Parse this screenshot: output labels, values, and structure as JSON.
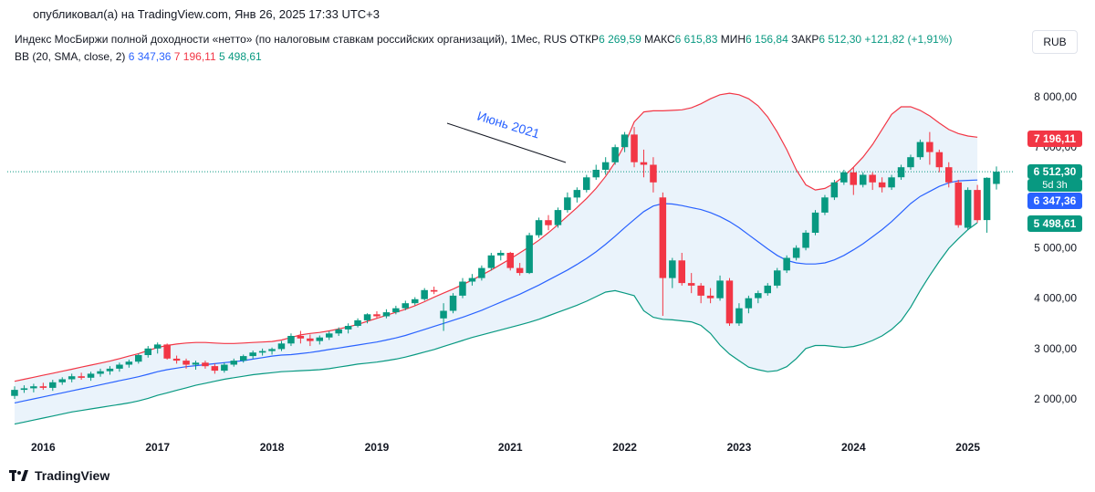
{
  "header": {
    "published": "опубликовал(а) на TradingView.com, Янв 26, 2025 17:33 UTC+3"
  },
  "legend": {
    "title": "Индекс МосБиржи полной доходности «нетто» (по налоговым ставкам российских организаций), 1Мес, RUS",
    "open_label": "ОТКР",
    "open": "6 269,59",
    "high_label": "МАКС",
    "high": "6 615,83",
    "low_label": "МИН",
    "low": "6 156,84",
    "close_label": "ЗАКР",
    "close": "6 512,30",
    "change": "+121,82 (+1,91%)",
    "bb_label": "BB (20, SMA, close, 2)",
    "bb_basis": "6 347,36",
    "bb_upper": "7 196,11",
    "bb_lower": "5 498,61"
  },
  "currency_button": "RUB",
  "footer": {
    "brand": "TradingView"
  },
  "price_tags": {
    "upper": "7 196,11",
    "last": "6 512,30",
    "countdown": "5d 3h",
    "basis": "6 347,36",
    "lower": "5 498,61"
  },
  "colors": {
    "up": "#089981",
    "down": "#f23645",
    "basis": "#2962ff",
    "upper": "#f23645",
    "lower": "#089981",
    "band_fill": "#eaf3fb"
  },
  "chart_data": {
    "type": "candlestick",
    "title": "Индекс МосБиржи полной доходности «нетто» (по налоговым ставкам российских организаций), 1Мес, RUS",
    "ylim": [
      1500,
      8600
    ],
    "y_ticks": [
      2000,
      3000,
      4000,
      5000,
      6000,
      7000,
      8000
    ],
    "y_tick_labels": [
      "2 000,00",
      "3 000,00",
      "4 000,00",
      "5 000,00",
      "6 000,00",
      "7 000,00",
      "8 000,00"
    ],
    "x_ticks": [
      {
        "label": "2016",
        "index": 3
      },
      {
        "label": "2017",
        "index": 15
      },
      {
        "label": "2018",
        "index": 27
      },
      {
        "label": "2019",
        "index": 38
      },
      {
        "label": "2021",
        "index": 52
      },
      {
        "label": "2022",
        "index": 64
      },
      {
        "label": "2023",
        "index": 76
      },
      {
        "label": "2024",
        "index": 88
      },
      {
        "label": "2025",
        "index": 100
      }
    ],
    "annotation": {
      "text": "Июнь 2021",
      "index": 57,
      "value": 6600
    },
    "grid": false,
    "candles": [
      [
        2060,
        2250,
        2000,
        2180
      ],
      [
        2180,
        2270,
        2120,
        2210
      ],
      [
        2210,
        2300,
        2130,
        2250
      ],
      [
        2250,
        2320,
        2180,
        2220
      ],
      [
        2220,
        2380,
        2160,
        2330
      ],
      [
        2330,
        2430,
        2280,
        2390
      ],
      [
        2390,
        2500,
        2330,
        2450
      ],
      [
        2450,
        2520,
        2380,
        2420
      ],
      [
        2420,
        2540,
        2360,
        2500
      ],
      [
        2500,
        2600,
        2440,
        2550
      ],
      [
        2550,
        2650,
        2480,
        2600
      ],
      [
        2600,
        2720,
        2540,
        2680
      ],
      [
        2680,
        2780,
        2620,
        2740
      ],
      [
        2740,
        2900,
        2700,
        2870
      ],
      [
        2870,
        3050,
        2820,
        3000
      ],
      [
        3000,
        3120,
        2900,
        3080
      ],
      [
        3080,
        3100,
        2780,
        2800
      ],
      [
        2800,
        2860,
        2700,
        2760
      ],
      [
        2760,
        2800,
        2600,
        2680
      ],
      [
        2680,
        2760,
        2580,
        2720
      ],
      [
        2720,
        2760,
        2600,
        2650
      ],
      [
        2650,
        2700,
        2500,
        2560
      ],
      [
        2560,
        2720,
        2520,
        2680
      ],
      [
        2680,
        2800,
        2640,
        2760
      ],
      [
        2760,
        2880,
        2720,
        2850
      ],
      [
        2850,
        2960,
        2800,
        2920
      ],
      [
        2920,
        3000,
        2860,
        2950
      ],
      [
        2950,
        3020,
        2880,
        2990
      ],
      [
        2990,
        3150,
        2950,
        3100
      ],
      [
        3100,
        3300,
        3050,
        3250
      ],
      [
        3250,
        3350,
        3100,
        3200
      ],
      [
        3200,
        3280,
        3050,
        3150
      ],
      [
        3150,
        3260,
        3080,
        3220
      ],
      [
        3220,
        3340,
        3170,
        3300
      ],
      [
        3300,
        3420,
        3250,
        3380
      ],
      [
        3380,
        3500,
        3300,
        3450
      ],
      [
        3450,
        3600,
        3420,
        3560
      ],
      [
        3560,
        3700,
        3500,
        3680
      ],
      [
        3680,
        3740,
        3600,
        3640
      ],
      [
        3640,
        3780,
        3600,
        3720
      ],
      [
        3720,
        3850,
        3680,
        3800
      ],
      [
        3800,
        3950,
        3760,
        3900
      ],
      [
        3900,
        4020,
        3860,
        3980
      ],
      [
        3980,
        4200,
        3950,
        4160
      ],
      [
        4160,
        4230,
        4080,
        4130
      ],
      [
        3600,
        3900,
        3350,
        3750
      ],
      [
        3750,
        4100,
        3700,
        4050
      ],
      [
        4050,
        4400,
        4000,
        4330
      ],
      [
        4330,
        4480,
        4250,
        4400
      ],
      [
        4400,
        4650,
        4350,
        4600
      ],
      [
        4600,
        4900,
        4550,
        4850
      ],
      [
        4850,
        4950,
        4750,
        4900
      ],
      [
        4900,
        4920,
        4550,
        4600
      ],
      [
        4600,
        4700,
        4450,
        4500
      ],
      [
        4500,
        5300,
        4480,
        5250
      ],
      [
        5250,
        5600,
        5200,
        5550
      ],
      [
        5550,
        5650,
        5350,
        5450
      ],
      [
        5450,
        5800,
        5400,
        5750
      ],
      [
        5750,
        6100,
        5700,
        6000
      ],
      [
        6000,
        6200,
        5900,
        6150
      ],
      [
        6150,
        6450,
        6100,
        6400
      ],
      [
        6400,
        6650,
        6350,
        6550
      ],
      [
        6550,
        6800,
        6450,
        6700
      ],
      [
        6700,
        7050,
        6650,
        7000
      ],
      [
        7000,
        7300,
        6900,
        7250
      ],
      [
        7250,
        7400,
        6600,
        6700
      ],
      [
        6700,
        6950,
        6400,
        6650
      ],
      [
        6650,
        6800,
        6100,
        6300
      ],
      [
        6000,
        6100,
        3650,
        4400
      ],
      [
        4400,
        4800,
        4200,
        4750
      ],
      [
        4750,
        4900,
        4250,
        4300
      ],
      [
        4300,
        4500,
        4100,
        4250
      ],
      [
        4250,
        4300,
        3900,
        4050
      ],
      [
        4050,
        4200,
        3900,
        4000
      ],
      [
        4000,
        4450,
        3950,
        4350
      ],
      [
        4350,
        4400,
        3450,
        3500
      ],
      [
        3500,
        3900,
        3450,
        3800
      ],
      [
        3800,
        4050,
        3700,
        4000
      ],
      [
        4000,
        4150,
        3900,
        4100
      ],
      [
        4100,
        4300,
        4050,
        4250
      ],
      [
        4250,
        4600,
        4200,
        4550
      ],
      [
        4550,
        4850,
        4500,
        4800
      ],
      [
        4800,
        5050,
        4750,
        5000
      ],
      [
        5000,
        5350,
        4950,
        5300
      ],
      [
        5300,
        5750,
        5250,
        5700
      ],
      [
        5700,
        6050,
        5650,
        6000
      ],
      [
        6000,
        6350,
        5950,
        6300
      ],
      [
        6300,
        6550,
        6250,
        6500
      ],
      [
        6500,
        6600,
        6050,
        6250
      ],
      [
        6250,
        6500,
        6200,
        6450
      ],
      [
        6450,
        6500,
        6150,
        6300
      ],
      [
        6300,
        6400,
        6100,
        6200
      ],
      [
        6200,
        6450,
        6150,
        6400
      ],
      [
        6400,
        6650,
        6350,
        6600
      ],
      [
        6600,
        6850,
        6550,
        6800
      ],
      [
        6800,
        7150,
        6750,
        7100
      ],
      [
        7100,
        7300,
        6650,
        6900
      ],
      [
        6900,
        6950,
        6500,
        6600
      ],
      [
        6600,
        6700,
        6200,
        6300
      ],
      [
        6300,
        6350,
        5400,
        5450
      ],
      [
        5400,
        6200,
        5350,
        6150
      ],
      [
        6150,
        6250,
        5500,
        5550
      ],
      [
        5550,
        6400,
        5300,
        6390
      ],
      [
        6269.59,
        6615.83,
        6156.84,
        6512.3
      ]
    ],
    "series": [
      {
        "name": "BB upper",
        "values": [
          2350,
          2390,
          2430,
          2470,
          2510,
          2550,
          2590,
          2630,
          2670,
          2710,
          2750,
          2800,
          2850,
          2900,
          2960,
          3020,
          3060,
          3090,
          3110,
          3120,
          3120,
          3110,
          3100,
          3100,
          3110,
          3120,
          3130,
          3140,
          3170,
          3220,
          3270,
          3300,
          3320,
          3350,
          3390,
          3430,
          3480,
          3540,
          3600,
          3660,
          3720,
          3780,
          3850,
          3930,
          4020,
          4100,
          4180,
          4270,
          4360,
          4460,
          4560,
          4670,
          4780,
          4900,
          5020,
          5150,
          5300,
          5460,
          5630,
          5800,
          5980,
          6180,
          6420,
          6700,
          7050,
          7500,
          7700,
          7720,
          7720,
          7730,
          7740,
          7780,
          7860,
          7960,
          8040,
          8070,
          8040,
          7960,
          7820,
          7600,
          7300,
          6950,
          6550,
          6250,
          6150,
          6180,
          6280,
          6420,
          6600,
          6800,
          7050,
          7350,
          7650,
          7800,
          7800,
          7730,
          7620,
          7480,
          7350,
          7270,
          7220,
          7196.11
        ]
      },
      {
        "name": "BB basis",
        "values": [
          1920,
          1960,
          2000,
          2040,
          2080,
          2120,
          2160,
          2200,
          2240,
          2280,
          2320,
          2360,
          2400,
          2440,
          2490,
          2540,
          2580,
          2610,
          2640,
          2660,
          2680,
          2700,
          2720,
          2740,
          2760,
          2790,
          2820,
          2850,
          2870,
          2880,
          2900,
          2920,
          2950,
          2980,
          3010,
          3040,
          3070,
          3100,
          3130,
          3170,
          3210,
          3260,
          3320,
          3380,
          3440,
          3500,
          3560,
          3620,
          3690,
          3760,
          3840,
          3920,
          4000,
          4080,
          4170,
          4260,
          4360,
          4460,
          4560,
          4670,
          4790,
          4920,
          5070,
          5230,
          5400,
          5560,
          5720,
          5830,
          5880,
          5870,
          5840,
          5800,
          5760,
          5700,
          5620,
          5520,
          5400,
          5260,
          5120,
          4980,
          4850,
          4750,
          4700,
          4680,
          4680,
          4700,
          4760,
          4850,
          4960,
          5080,
          5220,
          5360,
          5520,
          5700,
          5880,
          6020,
          6120,
          6220,
          6290,
          6330,
          6340,
          6347.36
        ]
      },
      {
        "name": "BB lower",
        "values": [
          1500,
          1540,
          1580,
          1620,
          1660,
          1700,
          1740,
          1770,
          1800,
          1830,
          1860,
          1890,
          1920,
          1960,
          2010,
          2070,
          2120,
          2170,
          2220,
          2270,
          2310,
          2350,
          2390,
          2420,
          2450,
          2480,
          2500,
          2520,
          2540,
          2550,
          2560,
          2570,
          2580,
          2600,
          2630,
          2660,
          2690,
          2710,
          2730,
          2760,
          2790,
          2830,
          2880,
          2930,
          2980,
          3040,
          3100,
          3160,
          3220,
          3270,
          3320,
          3370,
          3420,
          3470,
          3520,
          3580,
          3650,
          3720,
          3790,
          3860,
          3940,
          4030,
          4120,
          4150,
          4100,
          4050,
          3750,
          3620,
          3580,
          3570,
          3550,
          3530,
          3460,
          3300,
          3070,
          2890,
          2760,
          2630,
          2580,
          2540,
          2560,
          2640,
          2800,
          3000,
          3060,
          3060,
          3040,
          3020,
          3040,
          3090,
          3160,
          3250,
          3380,
          3550,
          3820,
          4150,
          4450,
          4730,
          4990,
          5180,
          5360,
          5498.61
        ]
      }
    ],
    "last_price_line": 6512.3
  }
}
